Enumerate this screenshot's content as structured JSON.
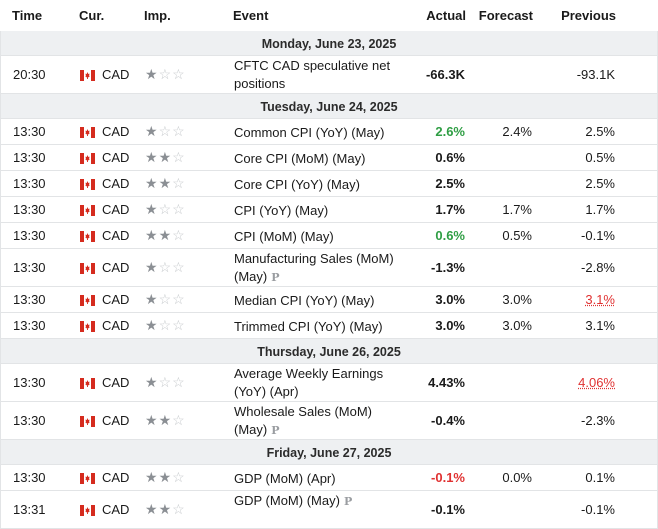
{
  "columns": {
    "time": "Time",
    "currency": "Cur.",
    "importance": "Imp.",
    "event": "Event",
    "actual": "Actual",
    "forecast": "Forecast",
    "previous": "Previous"
  },
  "colors": {
    "positive": "#2f9e44",
    "negative": "#e03131",
    "flag_red": "#d52b1e"
  },
  "icons": {
    "flag": "canada-flag-icon",
    "importance": "star-icon",
    "preliminary": "preliminary-p-icon"
  },
  "groups": [
    {
      "date": "Monday, June 23, 2025",
      "events": [
        {
          "time": "20:30",
          "currency": "CAD",
          "importance": 1,
          "event": "CFTC CAD speculative net positions",
          "actual": "-66.3K",
          "actual_color": "",
          "forecast": "",
          "previous": "-93.1K",
          "previous_revised": false,
          "preliminary": false
        }
      ]
    },
    {
      "date": "Tuesday, June 24, 2025",
      "events": [
        {
          "time": "13:30",
          "currency": "CAD",
          "importance": 1,
          "event": "Common CPI (YoY) (May)",
          "actual": "2.6%",
          "actual_color": "pos",
          "forecast": "2.4%",
          "previous": "2.5%",
          "previous_revised": false,
          "preliminary": false
        },
        {
          "time": "13:30",
          "currency": "CAD",
          "importance": 2,
          "event": "Core CPI (MoM) (May)",
          "actual": "0.6%",
          "actual_color": "",
          "forecast": "",
          "previous": "0.5%",
          "previous_revised": false,
          "preliminary": false
        },
        {
          "time": "13:30",
          "currency": "CAD",
          "importance": 2,
          "event": "Core CPI (YoY) (May)",
          "actual": "2.5%",
          "actual_color": "",
          "forecast": "",
          "previous": "2.5%",
          "previous_revised": false,
          "preliminary": false
        },
        {
          "time": "13:30",
          "currency": "CAD",
          "importance": 1,
          "event": "CPI (YoY) (May)",
          "actual": "1.7%",
          "actual_color": "",
          "forecast": "1.7%",
          "previous": "1.7%",
          "previous_revised": false,
          "preliminary": false
        },
        {
          "time": "13:30",
          "currency": "CAD",
          "importance": 2,
          "event": "CPI (MoM) (May)",
          "actual": "0.6%",
          "actual_color": "pos",
          "forecast": "0.5%",
          "previous": "-0.1%",
          "previous_revised": false,
          "preliminary": false
        },
        {
          "time": "13:30",
          "currency": "CAD",
          "importance": 1,
          "event": "Manufacturing Sales (MoM) (May)",
          "actual": "-1.3%",
          "actual_color": "",
          "forecast": "",
          "previous": "-2.8%",
          "previous_revised": false,
          "preliminary": true
        },
        {
          "time": "13:30",
          "currency": "CAD",
          "importance": 1,
          "event": "Median CPI (YoY) (May)",
          "actual": "3.0%",
          "actual_color": "",
          "forecast": "3.0%",
          "previous": "3.1%",
          "previous_revised": true,
          "preliminary": false
        },
        {
          "time": "13:30",
          "currency": "CAD",
          "importance": 1,
          "event": "Trimmed CPI (YoY) (May)",
          "actual": "3.0%",
          "actual_color": "",
          "forecast": "3.0%",
          "previous": "3.1%",
          "previous_revised": false,
          "preliminary": false
        }
      ]
    },
    {
      "date": "Thursday, June 26, 2025",
      "events": [
        {
          "time": "13:30",
          "currency": "CAD",
          "importance": 1,
          "event": "Average Weekly Earnings (YoY) (Apr)",
          "actual": "4.43%",
          "actual_color": "",
          "forecast": "",
          "previous": "4.06%",
          "previous_revised": true,
          "preliminary": false
        },
        {
          "time": "13:30",
          "currency": "CAD",
          "importance": 2,
          "event": "Wholesale Sales (MoM) (May)",
          "actual": "-0.4%",
          "actual_color": "",
          "forecast": "",
          "previous": "-2.3%",
          "previous_revised": false,
          "preliminary": true
        }
      ]
    },
    {
      "date": "Friday, June 27, 2025",
      "events": [
        {
          "time": "13:30",
          "currency": "CAD",
          "importance": 2,
          "event": "GDP (MoM) (Apr)",
          "actual": "-0.1%",
          "actual_color": "neg",
          "forecast": "0.0%",
          "previous": "0.1%",
          "previous_revised": false,
          "preliminary": false
        },
        {
          "time": "13:31",
          "currency": "CAD",
          "importance": 2,
          "event": "GDP (MoM) (May)",
          "actual": "-0.1%",
          "actual_color": "",
          "forecast": "",
          "previous": "-0.1%",
          "previous_revised": false,
          "preliminary": true
        }
      ]
    }
  ]
}
